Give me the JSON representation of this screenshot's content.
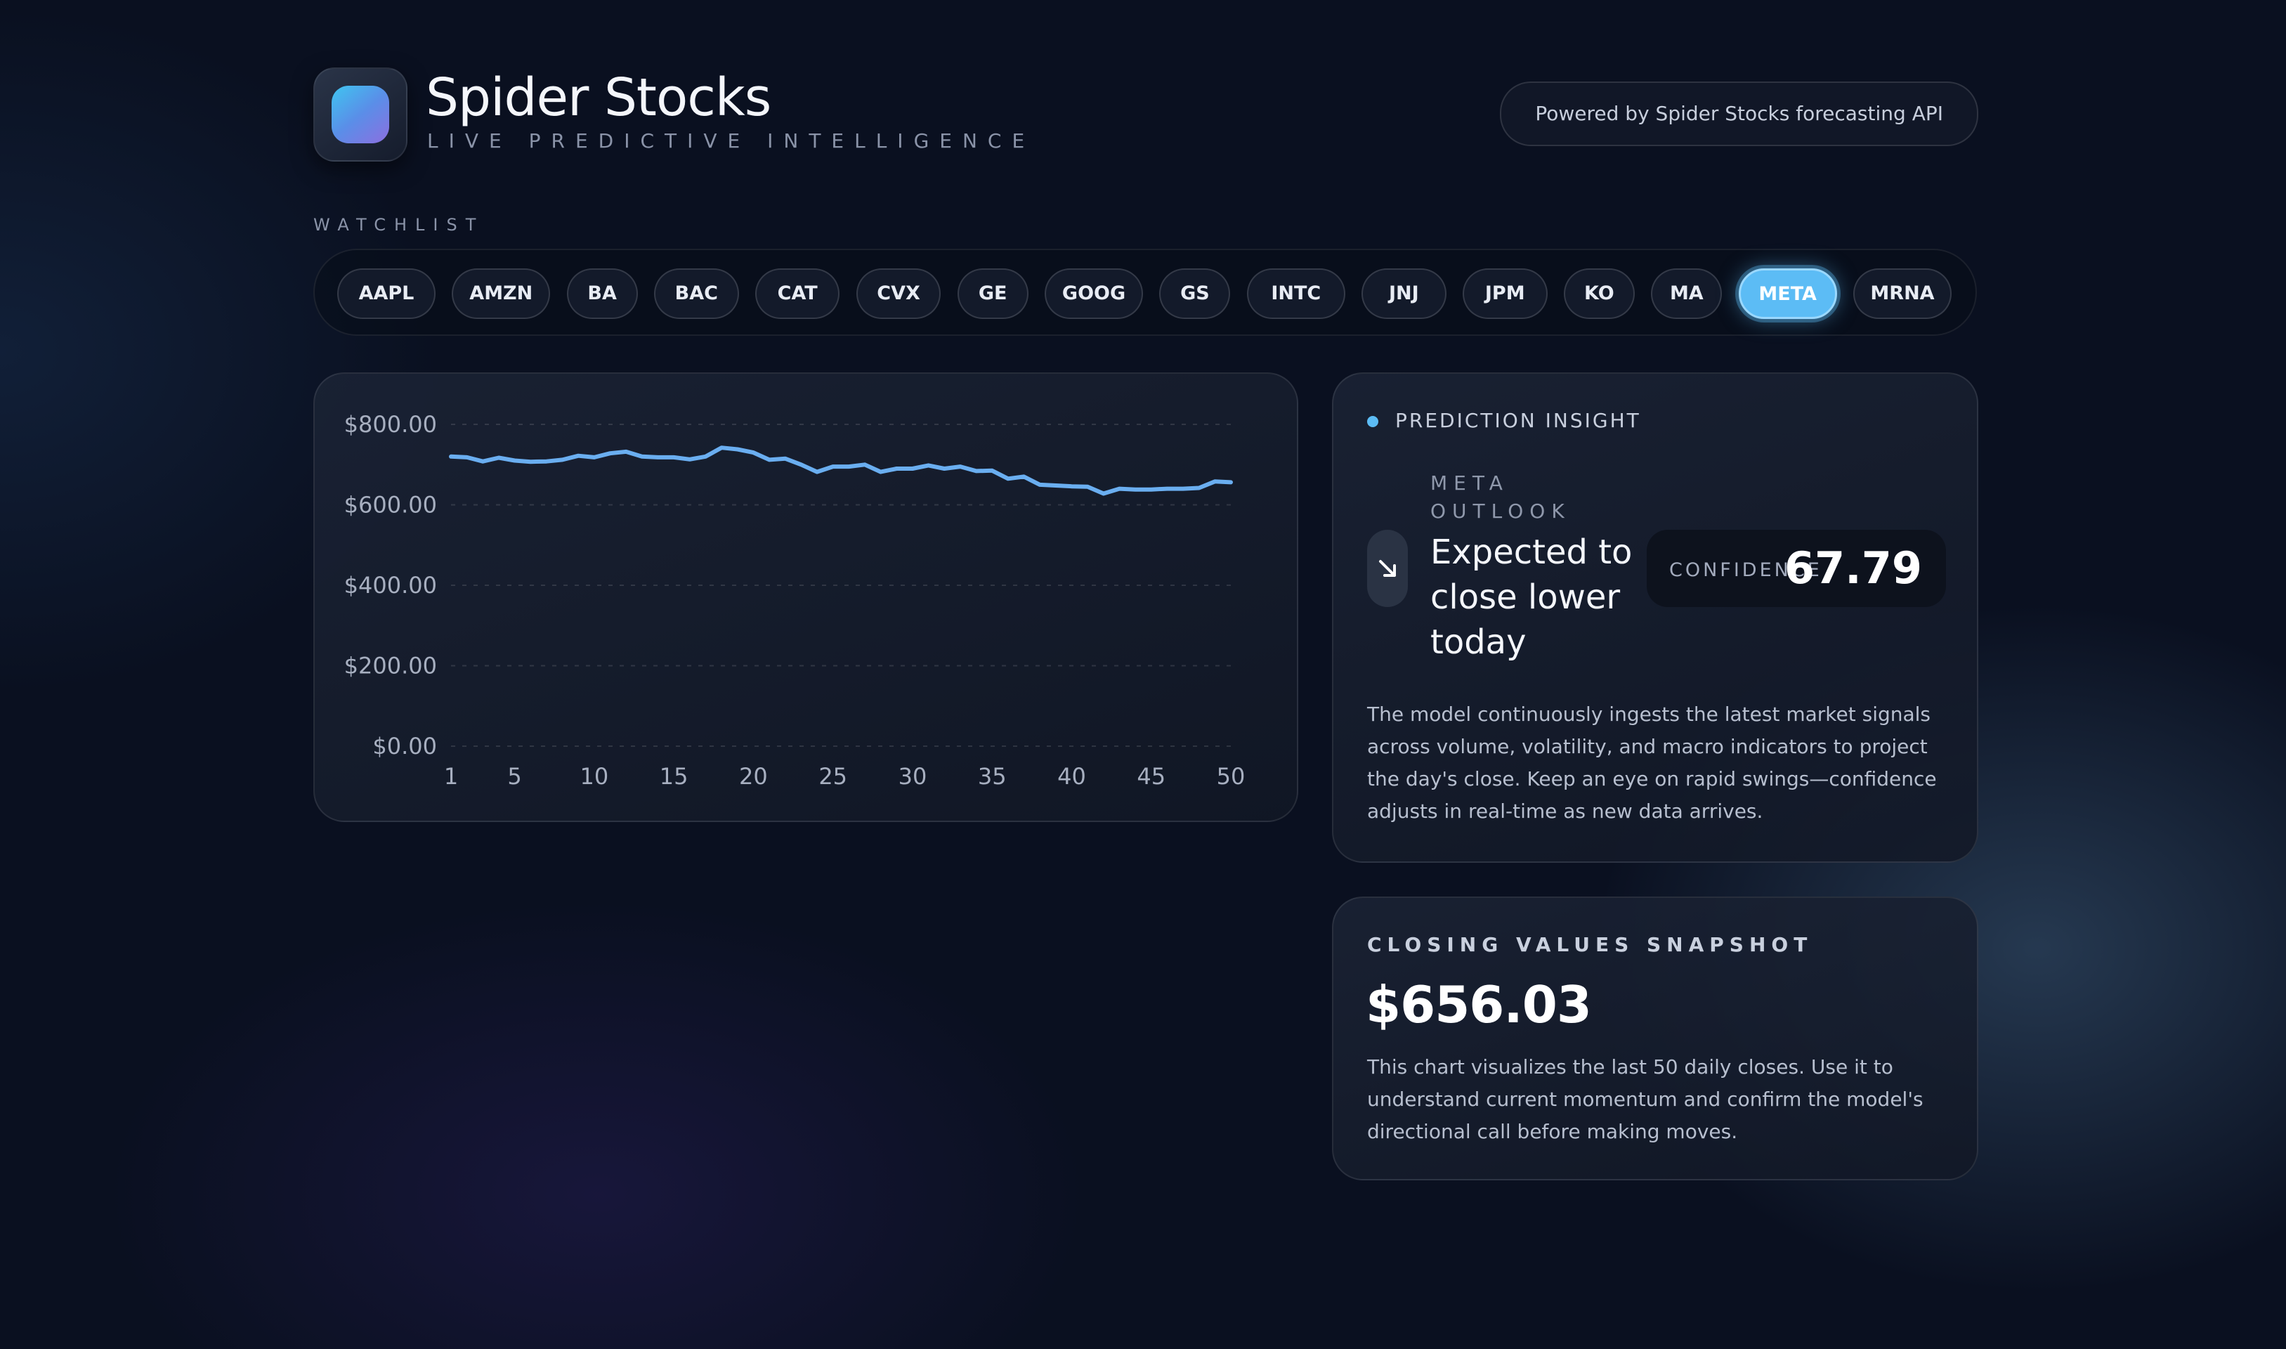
{
  "brand": {
    "title": "Spider Stocks",
    "subtitle": "LIVE PREDICTIVE INTELLIGENCE",
    "logo_icon": "gradient-app-icon"
  },
  "powered_by": "Powered by Spider Stocks forecasting API",
  "watchlist": {
    "label": "WATCHLIST",
    "selected": "META",
    "tickers": [
      "AAPL",
      "AMZN",
      "BA",
      "BAC",
      "CAT",
      "CVX",
      "GE",
      "GOOG",
      "GS",
      "INTC",
      "JNJ",
      "JPM",
      "KO",
      "MA",
      "META",
      "MRNA"
    ]
  },
  "insight": {
    "label": "PREDICTION INSIGHT",
    "ticker_line": "META OUTLOOK",
    "headline": "Expected to close lower today",
    "direction_icon": "arrow-down-right-icon",
    "confidence_label": "CONFIDENCE",
    "confidence_value": "67.79",
    "body": "The model continuously ingests the latest market signals across volume, volatility, and macro indicators to project the day's close. Keep an eye on rapid swings—confidence adjusts in real-time as new data arrives."
  },
  "snapshot": {
    "label": "CLOSING VALUES SNAPSHOT",
    "value": "$656.03",
    "body": "This chart visualizes the last 50 daily closes. Use it to understand current momentum and confirm the model's directional call before making moves."
  },
  "colors": {
    "accent": "#5cbcf5",
    "line": "#6aaef0",
    "background": "#0a1020"
  },
  "chart_data": {
    "type": "line",
    "x": [
      1,
      2,
      3,
      4,
      5,
      6,
      7,
      8,
      9,
      10,
      11,
      12,
      13,
      14,
      15,
      16,
      17,
      18,
      19,
      20,
      21,
      22,
      23,
      24,
      25,
      26,
      27,
      28,
      29,
      30,
      31,
      32,
      33,
      34,
      35,
      36,
      37,
      38,
      39,
      40,
      41,
      42,
      43,
      44,
      45,
      46,
      47,
      48,
      49,
      50
    ],
    "y_ticks": [
      "$0.00",
      "$200.00",
      "$400.00",
      "$600.00",
      "$800.00"
    ],
    "y_tick_values": [
      0,
      200,
      400,
      600,
      800
    ],
    "x_ticks": [
      1,
      5,
      10,
      15,
      20,
      25,
      30,
      35,
      40,
      45,
      50
    ],
    "ylim": [
      0,
      800
    ],
    "xlim": [
      1,
      50
    ],
    "grid": true,
    "series": [
      {
        "values": [
          720,
          718,
          708,
          717,
          710,
          707,
          708,
          712,
          722,
          718,
          728,
          732,
          720,
          718,
          718,
          713,
          720,
          742,
          738,
          730,
          712,
          715,
          700,
          682,
          695,
          695,
          700,
          682,
          690,
          690,
          698,
          690,
          695,
          684,
          685,
          665,
          670,
          650,
          648,
          646,
          645,
          628,
          640,
          638,
          638,
          640,
          640,
          642,
          658,
          656
        ]
      }
    ]
  }
}
